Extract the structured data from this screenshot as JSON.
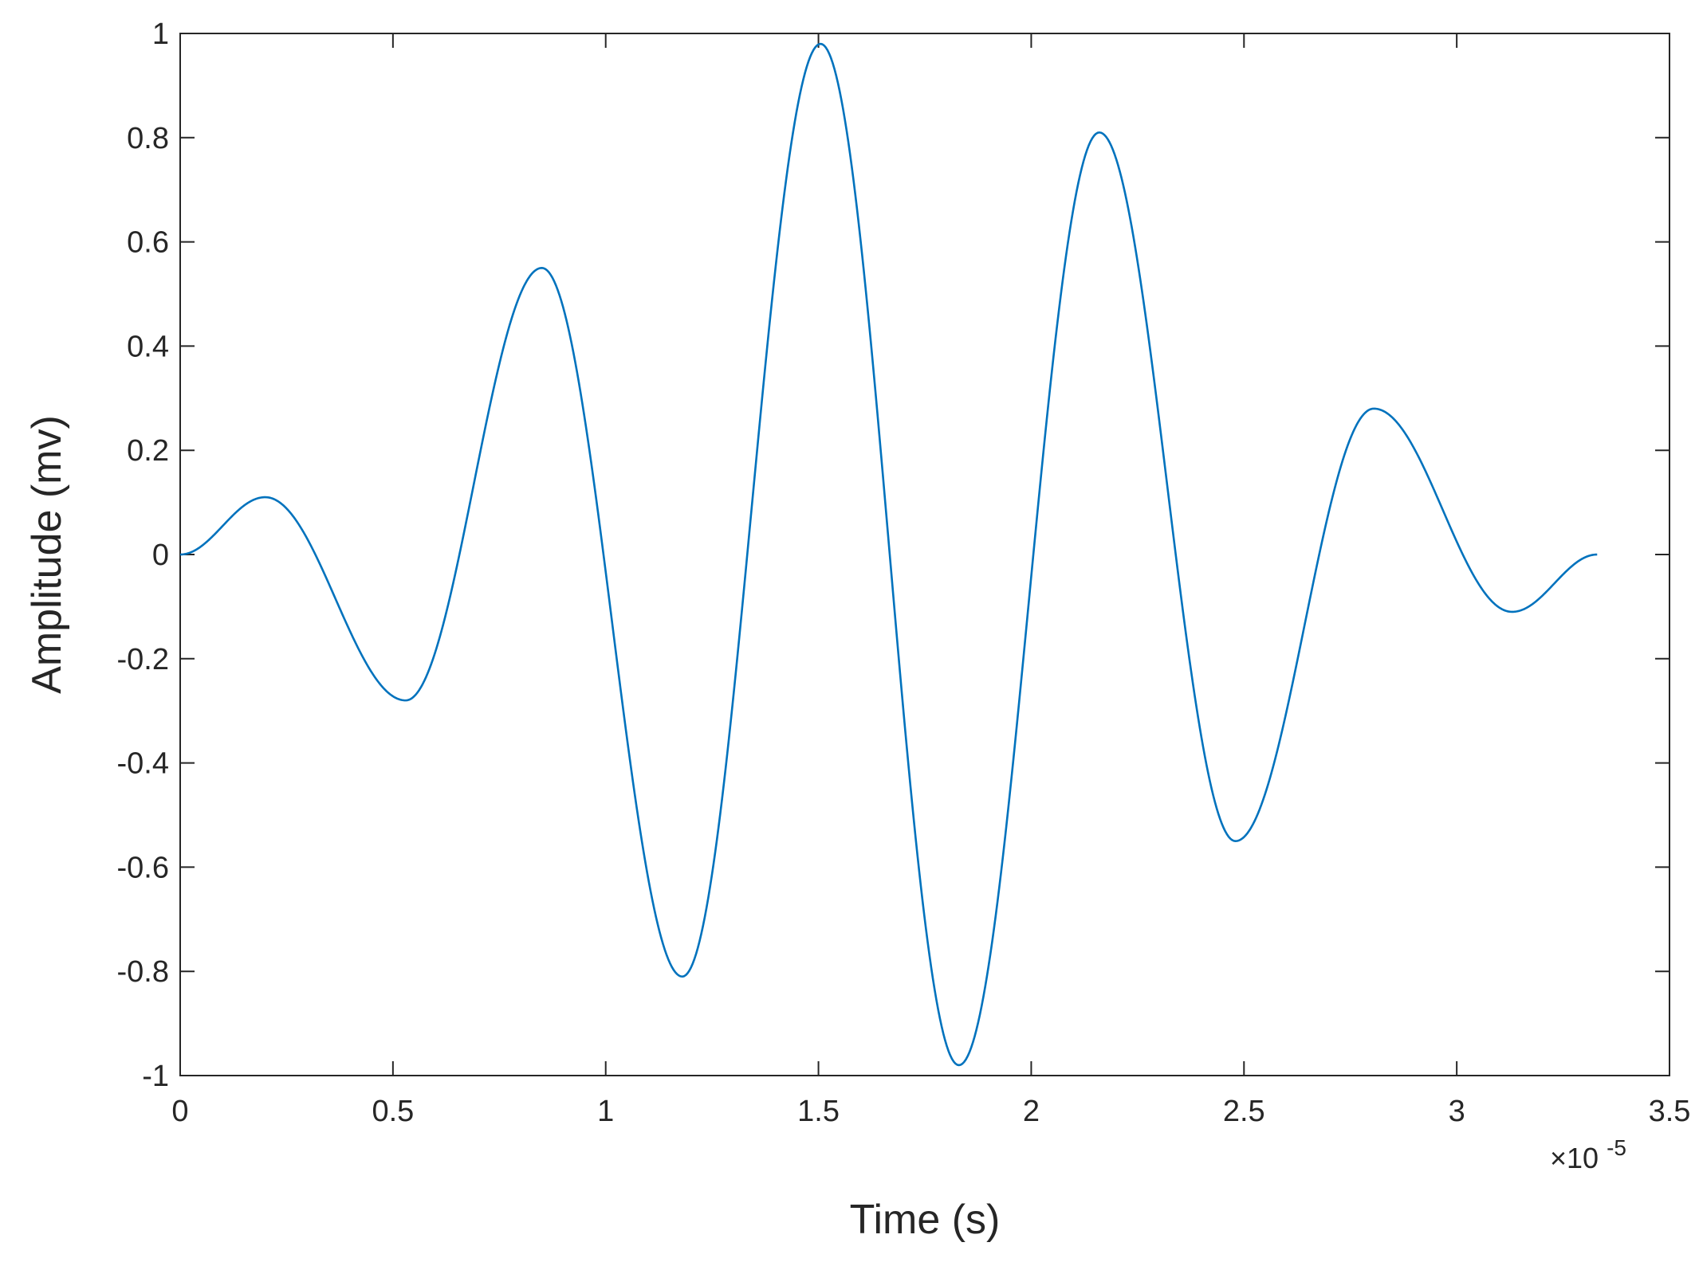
{
  "chart_data": {
    "type": "line",
    "title": "",
    "xlabel": "Time (s)",
    "ylabel": "Amplitude (mv)",
    "x_exponent_label": {
      "base": "×10",
      "exponent": "-5"
    },
    "xlim": [
      0,
      3.5
    ],
    "ylim": [
      -1,
      1
    ],
    "x_unit_scale": 1e-05,
    "xticks": [
      0,
      0.5,
      1,
      1.5,
      2,
      2.5,
      3,
      3.5
    ],
    "xtick_labels": [
      "0",
      "0.5",
      "1",
      "1.5",
      "2",
      "2.5",
      "3",
      "3.5"
    ],
    "yticks": [
      -1,
      -0.8,
      -0.6,
      -0.4,
      -0.2,
      0,
      0.2,
      0.4,
      0.6,
      0.8,
      1
    ],
    "ytick_labels": [
      "-1",
      "-0.8",
      "-0.6",
      "-0.4",
      "-0.2",
      "0",
      "0.2",
      "0.4",
      "0.6",
      "0.8",
      "1"
    ],
    "grid": false,
    "box": true,
    "series": [
      {
        "color": "#0072BD",
        "x": [
          0,
          0.2,
          0.53,
          0.85,
          1.18,
          1.505,
          1.83,
          2.16,
          2.48,
          2.805,
          3.13,
          3.33
        ],
        "y": [
          0,
          0.11,
          -0.28,
          0.55,
          -0.81,
          0.98,
          -0.98,
          0.81,
          -0.55,
          0.28,
          -0.11,
          0
        ]
      }
    ]
  }
}
